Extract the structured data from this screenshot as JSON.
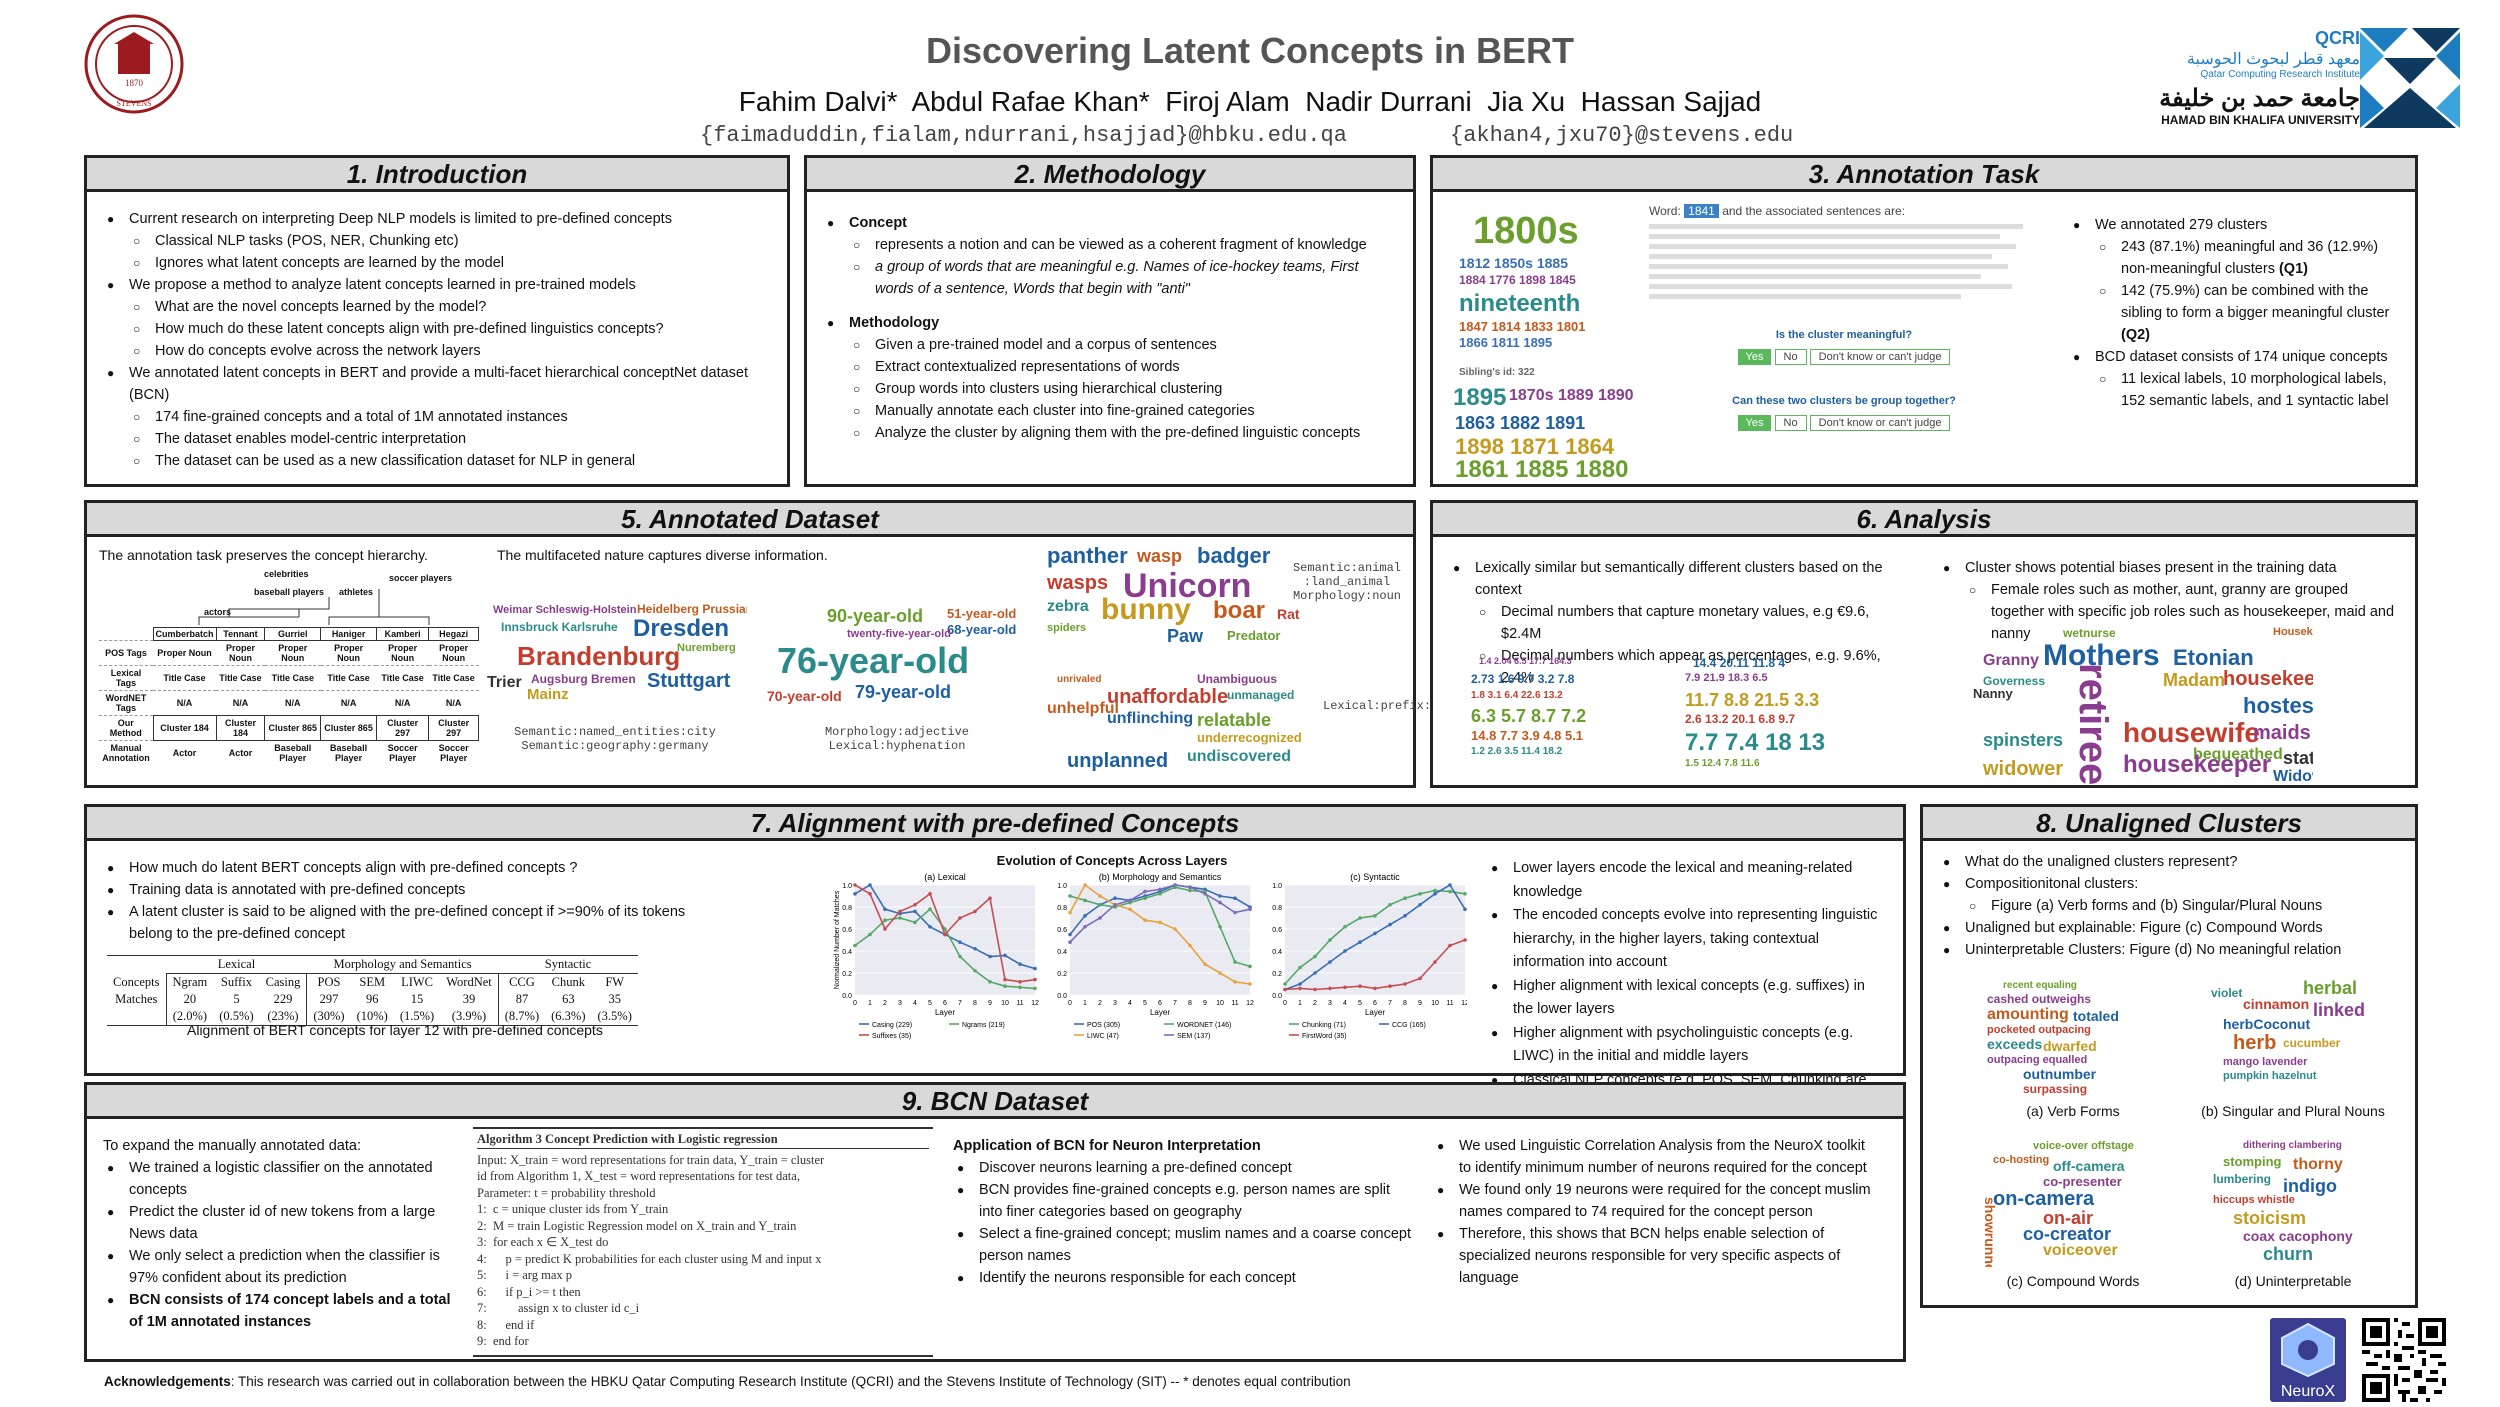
{
  "header": {
    "title": "Discovering Latent Concepts in BERT",
    "authors": "Fahim Dalvi*  Abdul Rafae Khan*  Firoj Alam  Nadir Durrani  Jia Xu  Hassan Sajjad",
    "emails_left": "{faimaduddin,fialam,ndurrani,hsajjad}@hbku.edu.qa",
    "emails_right": "{akhan4,jxu70}@stevens.edu",
    "seal_year": "1870",
    "seal_name": "STEVENS",
    "qcri_name": "QCRI",
    "qcri_arabic": "معهد قطر لبحوث الحوسبة",
    "qcri_english": "Qatar Computing Research Institute",
    "hbku_arabic": "جامعة حمد بن خليفة",
    "hbku_english": "HAMAD BIN KHALIFA UNIVERSITY"
  },
  "intro": {
    "title": "1. Introduction",
    "items": [
      {
        "l": 1,
        "t": "Current research on interpreting Deep NLP models is limited to pre-defined concepts"
      },
      {
        "l": 2,
        "t": "Classical NLP tasks (POS, NER, Chunking etc)"
      },
      {
        "l": 2,
        "t": "Ignores what latent concepts are learned by the model"
      },
      {
        "l": 1,
        "t": "We propose a method to analyze latent concepts learned in pre-trained models"
      },
      {
        "l": 2,
        "t": "What are the novel concepts learned by the model?"
      },
      {
        "l": 2,
        "t": "How much do these latent concepts align with pre-defined linguistics concepts?"
      },
      {
        "l": 2,
        "t": "How do concepts evolve across the network layers"
      },
      {
        "l": 1,
        "t": "We annotated latent concepts in BERT and provide a multi-facet hierarchical conceptNet dataset (BCN)"
      },
      {
        "l": 2,
        "t": "174 fine-grained concepts and a total of 1M annotated instances"
      },
      {
        "l": 2,
        "t": "The dataset enables model-centric interpretation"
      },
      {
        "l": 2,
        "t": "The dataset can be used as a new classification dataset for NLP in general"
      }
    ]
  },
  "method": {
    "title": "2. Methodology",
    "concept_head": "Concept",
    "concept_items": [
      "represents a notion and can be viewed as a coherent fragment of knowledge",
      "a group of words that are meaningful e.g. Names of ice-hockey teams, First words of a sentence, Words that begin with \"anti\""
    ],
    "method_head": "Methodology",
    "method_items": [
      "Given a pre-trained model and a corpus of sentences",
      "Extract contextualized representations of words",
      "Group words into clusters using hierarchical clustering",
      "Manually annotate each cluster into fine-grained categories",
      "Analyze the cluster by aligning them with the pre-defined linguistic concepts"
    ]
  },
  "annotation": {
    "title": "3. Annotation Task",
    "word_prefix": "Word:",
    "word_value": "1841",
    "word_suffix": "and the associated sentences are:",
    "q1": "Is the cluster meaningful?",
    "q2": "Can these two clusters be group together?",
    "yes": "Yes",
    "no": "No",
    "dont_know": "Don't know or can't judge",
    "sibling": "Sibling's id: 322",
    "items": [
      {
        "l": 1,
        "t": "We annotated 279 clusters"
      },
      {
        "l": 2,
        "t": "243 (87.1%) meaningful and 36 (12.9%) non-meaningful clusters",
        "b": "(Q1)"
      },
      {
        "l": 2,
        "t": "142 (75.9%) can be combined with the sibling to form a bigger meaningful cluster",
        "b": "(Q2)"
      },
      {
        "l": 1,
        "t": "BCD dataset consists of 174 unique concepts"
      },
      {
        "l": 2,
        "t": "11 lexical labels, 10 morphological labels, 152 semantic labels, and 1 syntactic label"
      }
    ]
  },
  "dataset": {
    "title": "5. Annotated Dataset",
    "left_caption": "The annotation task preserves the concept hierarchy.",
    "right_caption": "The multifaceted nature captures diverse information.",
    "tree_top": [
      "celebrities",
      "soccer players"
    ],
    "tree_mid": [
      "baseball players",
      "athletes",
      "actors"
    ],
    "tree_words": [
      "Cumberbatch",
      "Tennant",
      "Gurriel",
      "Haniger",
      "Kamberi",
      "Hegazi"
    ],
    "tree_rows": [
      {
        "h": "POS Tags",
        "c": [
          "Proper Noun",
          "Proper Noun",
          "Proper Noun",
          "Proper Noun",
          "Proper Noun",
          "Proper Noun"
        ]
      },
      {
        "h": "Lexical Tags",
        "c": [
          "Title Case",
          "Title Case",
          "Title Case",
          "Title Case",
          "Title Case",
          "Title Case"
        ]
      },
      {
        "h": "WordNET Tags",
        "c": [
          "N/A",
          "N/A",
          "N/A",
          "N/A",
          "N/A",
          "N/A"
        ]
      },
      {
        "h": "Our Method",
        "c": [
          "Cluster 184",
          "Cluster 184",
          "Cluster 865",
          "Cluster 865",
          "Cluster 297",
          "Cluster 297"
        ]
      },
      {
        "h": "Manual Annotation",
        "c": [
          "Actor",
          "Actor",
          "Baseball Player",
          "Baseball Player",
          "Soccer Player",
          "Soccer Player"
        ]
      }
    ],
    "label_geo": "Semantic:named_entities:city\nSemantic:geography:germany",
    "label_morph": "Morphology:adjective\nLexical:hyphenation",
    "label_animal": "Semantic:animal\n:land_animal\nMorphology:noun",
    "label_prefix": "Lexical:prefix:un"
  },
  "analysis": {
    "title": "6. Analysis",
    "left": [
      {
        "l": 1,
        "t": "Lexically similar but semantically different clusters based on the context"
      },
      {
        "l": 2,
        "t": "Decimal numbers that capture monetary values, e.g €9.6, $2.4M"
      },
      {
        "l": 2,
        "t": "Decimal numbers which appear as percentages, e.g. 9.6%, 2.4%"
      }
    ],
    "right": [
      {
        "l": 1,
        "t": "Cluster shows potential biases present in the training data"
      },
      {
        "l": 2,
        "t": "Female roles such as mother, aunt, granny are grouped together with specific job roles such as housekeeper, maid and nanny"
      }
    ]
  },
  "alignment": {
    "title": "7. Alignment with pre-defined Concepts",
    "left": [
      "How much do latent BERT concepts align with pre-defined concepts ?",
      "Training data is annotated with pre-defined concepts",
      "A latent cluster is said to be aligned with the pre-defined concept if >=90% of its tokens belong to the pre-defined concept"
    ],
    "table_groups": [
      "Lexical",
      "Morphology and Semantics",
      "Syntactic"
    ],
    "table_head": [
      "Concepts",
      "Ngram",
      "Suffix",
      "Casing",
      "POS",
      "SEM",
      "LIWC",
      "WordNet",
      "CCG",
      "Chunk",
      "FW"
    ],
    "table_row1": [
      "Matches",
      "20",
      "5",
      "229",
      "297",
      "96",
      "15",
      "39",
      "87",
      "63",
      "35"
    ],
    "table_row2": [
      "",
      "(2.0%)",
      "(0.5%)",
      "(23%)",
      "(30%)",
      "(10%)",
      "(1.5%)",
      "(3.9%)",
      "(8.7%)",
      "(6.3%)",
      "(3.5%)"
    ],
    "table_caption": "Alignment of BERT concepts for layer 12 with pre-defined concepts",
    "fig_title": "Evolution of Concepts Across Layers",
    "right": [
      "Lower layers encode the lexical and meaning-related knowledge",
      "The encoded concepts evolve into representing linguistic hierarchy, in the higher layers, taking contextual information into account",
      "Higher alignment with lexical concepts (e.g. suffixes) in the lower layers",
      "Higher alignment with psycholinguistic concepts (e.g. LIWC) in the initial and middle layers",
      "Classical NLP concepts (e.g. POS, SEM, Chunking are captured in the middle and final layers"
    ]
  },
  "chart_data": [
    {
      "type": "line",
      "title": "(a) Lexical",
      "xlabel": "Layer",
      "ylabel": "Normalized Number of Matches",
      "ylim": [
        0,
        1
      ],
      "x": [
        0,
        1,
        2,
        3,
        4,
        5,
        6,
        7,
        8,
        9,
        10,
        11,
        12
      ],
      "series": [
        {
          "name": "Casing (229)",
          "color": "#3b6fb5",
          "values": [
            0.92,
            1.0,
            0.78,
            0.74,
            0.76,
            0.62,
            0.55,
            0.48,
            0.42,
            0.35,
            0.36,
            0.28,
            0.24
          ]
        },
        {
          "name": "Ngrams (219)",
          "color": "#55a868",
          "values": [
            0.45,
            0.55,
            0.68,
            0.7,
            0.66,
            0.78,
            0.6,
            0.35,
            0.22,
            0.12,
            0.08,
            0.07,
            0.06
          ]
        },
        {
          "name": "Suffixes (35)",
          "color": "#c44e52",
          "values": [
            1.0,
            0.92,
            0.6,
            0.76,
            0.82,
            0.92,
            0.55,
            0.7,
            0.76,
            0.88,
            0.14,
            0.12,
            0.14
          ]
        }
      ]
    },
    {
      "type": "line",
      "title": "(b) Morphology and Semantics",
      "xlabel": "Layer",
      "ylim": [
        0,
        1
      ],
      "x": [
        0,
        1,
        2,
        3,
        4,
        5,
        6,
        7,
        8,
        9,
        10,
        11,
        12
      ],
      "series": [
        {
          "name": "POS (305)",
          "color": "#3b6fb5",
          "values": [
            0.55,
            0.72,
            0.82,
            0.88,
            0.86,
            0.9,
            0.94,
            1.0,
            0.98,
            0.96,
            0.9,
            0.88,
            0.8
          ]
        },
        {
          "name": "WORDNET (146)",
          "color": "#55a868",
          "values": [
            0.9,
            0.86,
            0.82,
            0.8,
            0.84,
            0.88,
            0.92,
            0.98,
            0.95,
            0.94,
            0.62,
            0.3,
            0.26
          ]
        },
        {
          "name": "LIWC (47)",
          "color": "#e8a33d",
          "values": [
            0.75,
            1.0,
            0.9,
            0.82,
            0.78,
            0.68,
            0.66,
            0.6,
            0.45,
            0.28,
            0.2,
            0.12,
            0.1
          ]
        },
        {
          "name": "SEM (137)",
          "color": "#7a6fb5",
          "values": [
            0.48,
            0.62,
            0.7,
            0.82,
            0.86,
            0.94,
            0.96,
            1.0,
            0.98,
            0.92,
            0.84,
            0.75,
            0.78
          ]
        }
      ]
    },
    {
      "type": "line",
      "title": "(c) Syntactic",
      "xlabel": "Layer",
      "ylim": [
        0,
        1
      ],
      "x": [
        0,
        1,
        2,
        3,
        4,
        5,
        6,
        7,
        8,
        9,
        10,
        11,
        12
      ],
      "series": [
        {
          "name": "Chunking (71)",
          "color": "#55a868",
          "values": [
            0.1,
            0.25,
            0.35,
            0.5,
            0.62,
            0.7,
            0.72,
            0.82,
            0.88,
            0.92,
            0.95,
            0.94,
            0.92
          ]
        },
        {
          "name": "CCG (165)",
          "color": "#3b6fb5",
          "values": [
            0.05,
            0.1,
            0.2,
            0.3,
            0.4,
            0.48,
            0.56,
            0.64,
            0.72,
            0.82,
            0.92,
            1.0,
            0.78
          ]
        },
        {
          "name": "FirstWord (35)",
          "color": "#c44e52",
          "values": [
            0.05,
            0.06,
            0.05,
            0.06,
            0.07,
            0.08,
            0.06,
            0.08,
            0.1,
            0.15,
            0.3,
            0.45,
            0.5
          ]
        }
      ]
    }
  ],
  "unaligned": {
    "title": "8. Unaligned Clusters",
    "items": [
      {
        "l": 1,
        "t": "What do the unaligned clusters represent?"
      },
      {
        "l": 1,
        "t": "Compositionitonal clusters:"
      },
      {
        "l": 2,
        "t": "Figure (a) Verb forms  and  (b) Singular/Plural Nouns"
      },
      {
        "l": 1,
        "t": "Unaligned but explainable: Figure (c)  Compound Words"
      },
      {
        "l": 1,
        "t": "Uninterpretable Clusters: Figure (d) No meaningful relation"
      }
    ],
    "cap_a": "(a) Verb Forms",
    "cap_b": "(b) Singular and Plural Nouns",
    "cap_c": "(c) Compound Words",
    "cap_d": "(d) Uninterpretable"
  },
  "bcn": {
    "title": "9. BCN Dataset",
    "intro": "To expand the manually annotated data:",
    "left": [
      "We trained a logistic classifier on the annotated concepts",
      "Predict the cluster id of new tokens from a large News data",
      "We only select a prediction when the classifier is 97% confident about its prediction",
      "BCN consists of 174 concept labels and a total of 1M annotated instances"
    ],
    "algo_title": "Algorithm 3 Concept Prediction with Logistic regression",
    "algo": [
      "Input: X_train = word representations for train data, Y_train = cluster",
      "id from Algorithm 1, X_test = word representations for test data,",
      "Parameter: t = probability threshold",
      "1:  c = unique cluster ids from Y_train",
      "2:  M = train Logistic Regression model on X_train and Y_train",
      "3:  for each x ∈ X_test do",
      "4:      p = predict K probabilities for each cluster using M and input x",
      "5:      i = arg max p",
      "6:      if p_i >= t then",
      "7:          assign x to cluster id c_i",
      "8:      end if",
      "9:  end for"
    ],
    "app_head": "Application of BCN for Neuron Interpretation",
    "app": [
      "Discover neurons learning a pre-defined concept",
      "BCN provides fine-grained concepts e.g. person names are split into finer categories based on geography",
      "Select a fine-grained concept; muslim names and a coarse concept person names",
      "Identify the neurons responsible for each concept"
    ],
    "right": [
      "We used Linguistic Correlation Analysis from the NeuroX toolkit to identify minimum number of neurons required for the concept",
      "We found only 19 neurons were required for the concept muslim names compared to 74 required for the concept person",
      "Therefore, this shows that BCN helps enable selection of specialized neurons responsible for very specific aspects of language"
    ],
    "neurox_label": "NeuroX"
  },
  "ack": {
    "bold": "Acknowledgements",
    "text": ": This research was carried out in collaboration between the HBKU Qatar Computing Research Institute (QCRI) and the Stevens Institute of  Technology (SIT) --  * denotes equal contribution"
  }
}
